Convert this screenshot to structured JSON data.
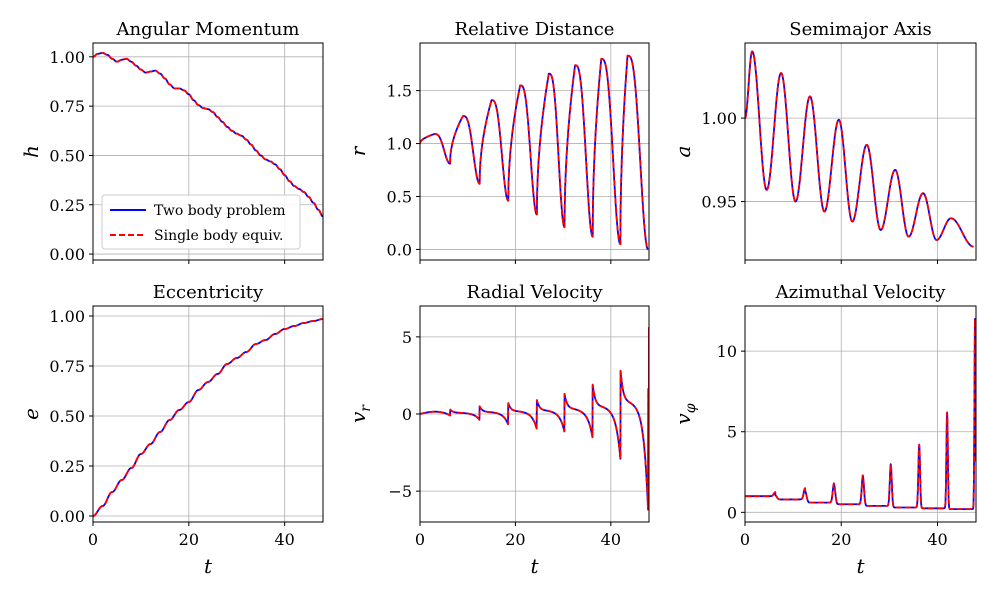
{
  "figure": {
    "legend": {
      "entries": [
        {
          "label": "Two body problem",
          "color": "#0000ff",
          "style": "solid"
        },
        {
          "label": "Single body equiv.",
          "color": "#ff0000",
          "style": "dashed"
        }
      ]
    }
  },
  "chart_data": [
    {
      "type": "line",
      "title": "Angular Momentum",
      "xlabel": "",
      "ylabel": "h",
      "xlim": [
        0,
        48
      ],
      "ylim": [
        -0.03,
        1.07
      ],
      "xticks": [
        0,
        20,
        40
      ],
      "xtick_labels": [
        "",
        "",
        ""
      ],
      "yticks": [
        0,
        0.25,
        0.5,
        0.75,
        1.0
      ],
      "ytick_labels": [
        "0.00",
        "0.25",
        "0.50",
        "0.75",
        "1.00"
      ],
      "grid": true,
      "legend": "lower-left",
      "series": [
        {
          "name": "Two body problem",
          "color": "#0000ff",
          "style": "solid",
          "x": [
            0,
            1,
            2,
            3,
            4,
            5,
            6,
            7,
            8,
            9,
            10,
            11,
            12,
            13,
            14,
            15,
            16,
            17,
            18,
            19,
            20,
            21,
            22,
            23,
            24,
            25,
            26,
            27,
            28,
            29,
            30,
            31,
            32,
            33,
            34,
            35,
            36,
            37,
            38,
            39,
            40,
            41,
            42,
            43,
            44,
            45,
            46,
            47,
            48
          ],
          "y": [
            1.0,
            1.015,
            1.02,
            1.01,
            0.99,
            0.975,
            0.985,
            0.99,
            0.975,
            0.955,
            0.935,
            0.92,
            0.925,
            0.93,
            0.915,
            0.89,
            0.86,
            0.84,
            0.84,
            0.83,
            0.81,
            0.78,
            0.755,
            0.74,
            0.735,
            0.72,
            0.695,
            0.67,
            0.645,
            0.625,
            0.61,
            0.6,
            0.58,
            0.555,
            0.525,
            0.5,
            0.48,
            0.47,
            0.455,
            0.43,
            0.4,
            0.37,
            0.345,
            0.33,
            0.315,
            0.29,
            0.26,
            0.225,
            0.19
          ]
        },
        {
          "name": "Single body equiv.",
          "color": "#ff0000",
          "style": "dashed",
          "x": [
            0,
            1,
            2,
            3,
            4,
            5,
            6,
            7,
            8,
            9,
            10,
            11,
            12,
            13,
            14,
            15,
            16,
            17,
            18,
            19,
            20,
            21,
            22,
            23,
            24,
            25,
            26,
            27,
            28,
            29,
            30,
            31,
            32,
            33,
            34,
            35,
            36,
            37,
            38,
            39,
            40,
            41,
            42,
            43,
            44,
            45,
            46,
            47,
            48
          ],
          "y": [
            1.0,
            1.015,
            1.02,
            1.01,
            0.99,
            0.975,
            0.985,
            0.99,
            0.975,
            0.955,
            0.935,
            0.92,
            0.925,
            0.93,
            0.915,
            0.89,
            0.86,
            0.84,
            0.84,
            0.83,
            0.81,
            0.78,
            0.755,
            0.74,
            0.735,
            0.72,
            0.695,
            0.67,
            0.645,
            0.625,
            0.61,
            0.6,
            0.58,
            0.555,
            0.525,
            0.5,
            0.48,
            0.47,
            0.455,
            0.43,
            0.4,
            0.37,
            0.345,
            0.33,
            0.315,
            0.29,
            0.26,
            0.225,
            0.19
          ]
        }
      ]
    },
    {
      "type": "line",
      "title": "Relative Distance",
      "xlabel": "",
      "ylabel": "r",
      "xlim": [
        0,
        48
      ],
      "ylim": [
        -0.1,
        1.95
      ],
      "xticks": [
        0,
        20,
        40
      ],
      "xtick_labels": [
        "",
        "",
        ""
      ],
      "yticks": [
        0,
        0.5,
        1.0,
        1.5
      ],
      "ytick_labels": [
        "0.0",
        "0.5",
        "1.0",
        "1.5"
      ],
      "grid": true,
      "note": "oscillation with growing amplitude; peaks rise to about 1.83, minima drop toward 0.05",
      "series": [
        {
          "name": "Two body problem",
          "color": "#0000ff",
          "style": "solid",
          "peaks_x": [
            3,
            9,
            15,
            21,
            27,
            32.5,
            38,
            43.5
          ],
          "peaks_y": [
            1.09,
            1.26,
            1.41,
            1.55,
            1.66,
            1.74,
            1.8,
            1.83
          ],
          "troughs_x": [
            0,
            6.3,
            12.5,
            18.5,
            24.5,
            30.3,
            36.2,
            42,
            47.8
          ],
          "troughs_y": [
            1.0,
            0.81,
            0.62,
            0.46,
            0.33,
            0.21,
            0.12,
            0.05,
            0.0
          ]
        },
        {
          "name": "Single body equiv.",
          "color": "#ff0000",
          "style": "dashed",
          "peaks_x": [
            3,
            9,
            15,
            21,
            27,
            32.5,
            38,
            43.5
          ],
          "peaks_y": [
            1.09,
            1.26,
            1.41,
            1.55,
            1.66,
            1.74,
            1.8,
            1.83
          ],
          "troughs_x": [
            0,
            6.3,
            12.5,
            18.5,
            24.5,
            30.3,
            36.2,
            42,
            47.8
          ],
          "troughs_y": [
            1.0,
            0.81,
            0.62,
            0.46,
            0.33,
            0.21,
            0.12,
            0.05,
            0.0
          ]
        }
      ]
    },
    {
      "type": "line",
      "title": "Semimajor Axis",
      "xlabel": "",
      "ylabel": "a",
      "xlim": [
        0,
        48
      ],
      "ylim": [
        0.915,
        1.045
      ],
      "xticks": [
        0,
        20,
        40
      ],
      "xtick_labels": [
        "",
        "",
        ""
      ],
      "yticks": [
        0.95,
        1.0
      ],
      "ytick_labels": [
        "0.95",
        "1.00"
      ],
      "grid": true,
      "note": "damped oscillation drifting downward",
      "series": [
        {
          "name": "Two body problem",
          "color": "#0000ff",
          "style": "solid",
          "peaks_x": [
            1.5,
            7.5,
            13.5,
            19.5,
            25.3,
            31.2,
            37,
            42.8
          ],
          "peaks_y": [
            1.04,
            1.027,
            1.013,
            0.999,
            0.984,
            0.969,
            0.955,
            0.94
          ],
          "troughs_x": [
            0,
            4.5,
            10.5,
            16.5,
            22.3,
            28.2,
            34,
            39.8,
            47.5
          ],
          "troughs_y": [
            1.0,
            0.957,
            0.95,
            0.944,
            0.938,
            0.933,
            0.929,
            0.927,
            0.923
          ]
        },
        {
          "name": "Single body equiv.",
          "color": "#ff0000",
          "style": "dashed",
          "peaks_x": [
            1.5,
            7.5,
            13.5,
            19.5,
            25.3,
            31.2,
            37,
            42.8
          ],
          "peaks_y": [
            1.04,
            1.027,
            1.013,
            0.999,
            0.984,
            0.969,
            0.955,
            0.94
          ],
          "troughs_x": [
            0,
            4.5,
            10.5,
            16.5,
            22.3,
            28.2,
            34,
            39.8,
            47.5
          ],
          "troughs_y": [
            1.0,
            0.957,
            0.95,
            0.944,
            0.938,
            0.933,
            0.929,
            0.927,
            0.923
          ]
        }
      ]
    },
    {
      "type": "line",
      "title": "Eccentricity",
      "xlabel": "t",
      "ylabel": "e",
      "xlim": [
        0,
        48
      ],
      "ylim": [
        -0.03,
        1.05
      ],
      "xticks": [
        0,
        20,
        40
      ],
      "xtick_labels": [
        "0",
        "20",
        "40"
      ],
      "yticks": [
        0,
        0.25,
        0.5,
        0.75,
        1.0
      ],
      "ytick_labels": [
        "0.00",
        "0.25",
        "0.50",
        "0.75",
        "1.00"
      ],
      "grid": true,
      "series": [
        {
          "name": "Two body problem",
          "color": "#0000ff",
          "style": "solid",
          "x": [
            0,
            2,
            4,
            6,
            8,
            10,
            12,
            14,
            16,
            18,
            20,
            22,
            24,
            26,
            28,
            30,
            32,
            34,
            36,
            38,
            40,
            42,
            44,
            46,
            48
          ],
          "y": [
            0.0,
            0.05,
            0.12,
            0.18,
            0.24,
            0.31,
            0.36,
            0.42,
            0.48,
            0.53,
            0.57,
            0.63,
            0.67,
            0.71,
            0.76,
            0.79,
            0.82,
            0.86,
            0.88,
            0.91,
            0.935,
            0.95,
            0.965,
            0.975,
            0.985
          ]
        },
        {
          "name": "Single body equiv.",
          "color": "#ff0000",
          "style": "dashed",
          "x": [
            0,
            2,
            4,
            6,
            8,
            10,
            12,
            14,
            16,
            18,
            20,
            22,
            24,
            26,
            28,
            30,
            32,
            34,
            36,
            38,
            40,
            42,
            44,
            46,
            48
          ],
          "y": [
            0.0,
            0.05,
            0.12,
            0.18,
            0.24,
            0.31,
            0.36,
            0.42,
            0.48,
            0.53,
            0.57,
            0.63,
            0.67,
            0.71,
            0.76,
            0.79,
            0.82,
            0.86,
            0.88,
            0.91,
            0.935,
            0.95,
            0.965,
            0.975,
            0.985
          ]
        }
      ]
    },
    {
      "type": "line",
      "title": "Radial Velocity",
      "xlabel": "t",
      "ylabel": "v_r",
      "xlim": [
        0,
        48
      ],
      "ylim": [
        -7,
        7
      ],
      "xticks": [
        0,
        20,
        40
      ],
      "xtick_labels": [
        "0",
        "20",
        "40"
      ],
      "yticks": [
        -5,
        0,
        5
      ],
      "ytick_labels": [
        "−5",
        "0",
        "5"
      ],
      "grid": true,
      "note": "sawtooth spikes near each close approach with growing amplitude",
      "series": [
        {
          "name": "Two body problem",
          "color": "#0000ff",
          "style": "solid",
          "spike_x": [
            6.3,
            12.5,
            18.5,
            24.5,
            30.3,
            36.2,
            42,
            47.8
          ],
          "spike_low": [
            -0.1,
            -0.4,
            -0.7,
            -1.0,
            -1.2,
            -1.6,
            -2.9,
            -6.2
          ],
          "spike_high": [
            0.3,
            0.5,
            0.7,
            0.9,
            1.3,
            1.9,
            3.0,
            5.6
          ]
        },
        {
          "name": "Single body equiv.",
          "color": "#ff0000",
          "style": "dashed",
          "spike_x": [
            6.3,
            12.5,
            18.5,
            24.5,
            30.3,
            36.2,
            42,
            47.8
          ],
          "spike_low": [
            -0.1,
            -0.4,
            -0.7,
            -1.0,
            -1.2,
            -1.6,
            -2.9,
            -6.2
          ],
          "spike_high": [
            0.3,
            0.5,
            0.7,
            0.9,
            1.3,
            1.9,
            3.0,
            5.6
          ]
        }
      ]
    },
    {
      "type": "line",
      "title": "Azimuthal Velocity",
      "xlabel": "t",
      "ylabel": "v_φ",
      "xlim": [
        0,
        48
      ],
      "ylim": [
        -0.6,
        12.8
      ],
      "xticks": [
        0,
        20,
        40
      ],
      "xtick_labels": [
        "0",
        "20",
        "40"
      ],
      "yticks": [
        0,
        5,
        10
      ],
      "ytick_labels": [
        "0",
        "5",
        "10"
      ],
      "grid": true,
      "note": "baseline near 0.2-1.0 with sharp spikes at close approaches",
      "series": [
        {
          "name": "Two body problem",
          "color": "#0000ff",
          "style": "solid",
          "spike_x": [
            6.3,
            12.5,
            18.5,
            24.5,
            30.3,
            36.2,
            42,
            47.8
          ],
          "spike_y": [
            1.25,
            1.5,
            1.8,
            2.3,
            3.0,
            4.2,
            6.2,
            12.0
          ],
          "baseline": [
            1.0,
            0.8,
            0.6,
            0.5,
            0.4,
            0.3,
            0.25,
            0.2
          ]
        },
        {
          "name": "Single body equiv.",
          "color": "#ff0000",
          "style": "dashed",
          "spike_x": [
            6.3,
            12.5,
            18.5,
            24.5,
            30.3,
            36.2,
            42,
            47.8
          ],
          "spike_y": [
            1.25,
            1.5,
            1.8,
            2.3,
            3.0,
            4.2,
            6.2,
            12.0
          ],
          "baseline": [
            1.0,
            0.8,
            0.6,
            0.5,
            0.4,
            0.3,
            0.25,
            0.2
          ]
        }
      ]
    }
  ]
}
